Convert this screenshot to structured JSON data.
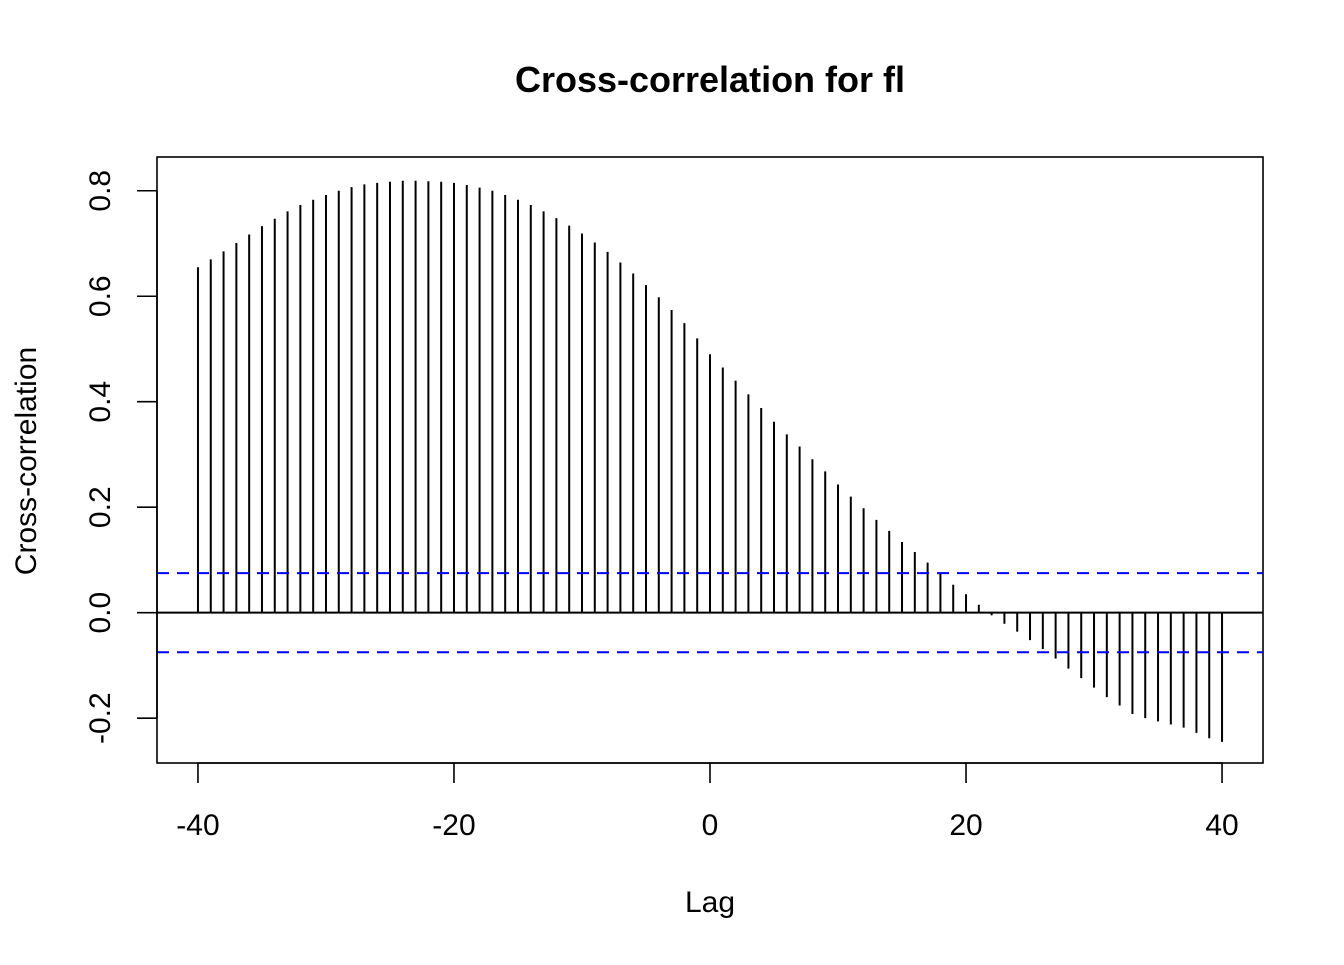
{
  "chart_data": {
    "type": "bar",
    "title": "Cross-correlation for fl",
    "xlabel": "Lag",
    "ylabel": "Cross-correlation",
    "xlim": [
      -43.2,
      43.2
    ],
    "ylim": [
      -0.285,
      0.864
    ],
    "x_ticks": [
      -40,
      -20,
      0,
      20,
      40
    ],
    "x_tick_labels": [
      "-40",
      "-20",
      "0",
      "20",
      "40"
    ],
    "y_ticks": [
      -0.2,
      0.0,
      0.2,
      0.4,
      0.6,
      0.8
    ],
    "y_tick_labels": [
      "-0.2",
      "0.0",
      "0.2",
      "0.4",
      "0.6",
      "0.8"
    ],
    "zero_line": 0.0,
    "confidence_bounds": [
      0.075,
      -0.075
    ],
    "confidence_color": "#0000ff",
    "line_color": "#000000",
    "grid": false,
    "x": [
      -40,
      -39,
      -38,
      -37,
      -36,
      -35,
      -34,
      -33,
      -32,
      -31,
      -30,
      -29,
      -28,
      -27,
      -26,
      -25,
      -24,
      -23,
      -22,
      -21,
      -20,
      -19,
      -18,
      -17,
      -16,
      -15,
      -14,
      -13,
      -12,
      -11,
      -10,
      -9,
      -8,
      -7,
      -6,
      -5,
      -4,
      -3,
      -2,
      -1,
      0,
      1,
      2,
      3,
      4,
      5,
      6,
      7,
      8,
      9,
      10,
      11,
      12,
      13,
      14,
      15,
      16,
      17,
      18,
      19,
      20,
      21,
      22,
      23,
      24,
      25,
      26,
      27,
      28,
      29,
      30,
      31,
      32,
      33,
      34,
      35,
      36,
      37,
      38,
      39,
      40
    ],
    "values": [
      0.655,
      0.67,
      0.685,
      0.701,
      0.717,
      0.733,
      0.747,
      0.761,
      0.773,
      0.783,
      0.792,
      0.8,
      0.807,
      0.812,
      0.815,
      0.817,
      0.819,
      0.819,
      0.818,
      0.817,
      0.815,
      0.811,
      0.806,
      0.8,
      0.792,
      0.783,
      0.773,
      0.761,
      0.748,
      0.734,
      0.719,
      0.702,
      0.684,
      0.664,
      0.643,
      0.621,
      0.598,
      0.574,
      0.549,
      0.52,
      0.49,
      0.465,
      0.44,
      0.414,
      0.388,
      0.362,
      0.338,
      0.315,
      0.291,
      0.268,
      0.243,
      0.22,
      0.198,
      0.176,
      0.155,
      0.134,
      0.115,
      0.095,
      0.074,
      0.053,
      0.035,
      0.015,
      -0.005,
      -0.021,
      -0.036,
      -0.052,
      -0.069,
      -0.087,
      -0.106,
      -0.124,
      -0.142,
      -0.16,
      -0.176,
      -0.192,
      -0.2,
      -0.206,
      -0.212,
      -0.218,
      -0.228,
      -0.238,
      -0.245
    ]
  }
}
